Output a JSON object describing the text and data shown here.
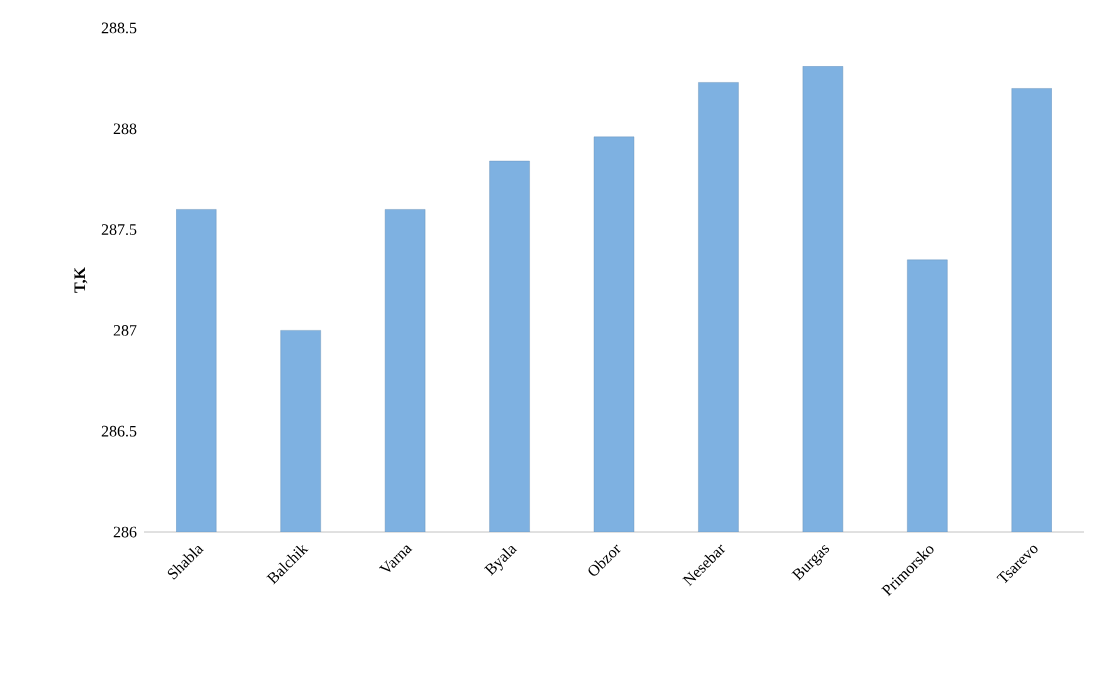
{
  "chart_data": {
    "type": "bar",
    "ylabel": "T,K",
    "categories": [
      "Shabla",
      "Balchik",
      "Varna",
      "Byala",
      "Obzor",
      "Nesebar",
      "Burgas",
      "Primorsko",
      "Tsarevo"
    ],
    "values": [
      287.6,
      287.0,
      287.6,
      287.84,
      287.96,
      288.23,
      288.31,
      287.35,
      288.2
    ],
    "color": "#7eb1e1",
    "ylim": [
      286,
      288.5
    ],
    "yticks": [
      286,
      286.5,
      287,
      287.5,
      288,
      288.5
    ],
    "grid": false
  }
}
